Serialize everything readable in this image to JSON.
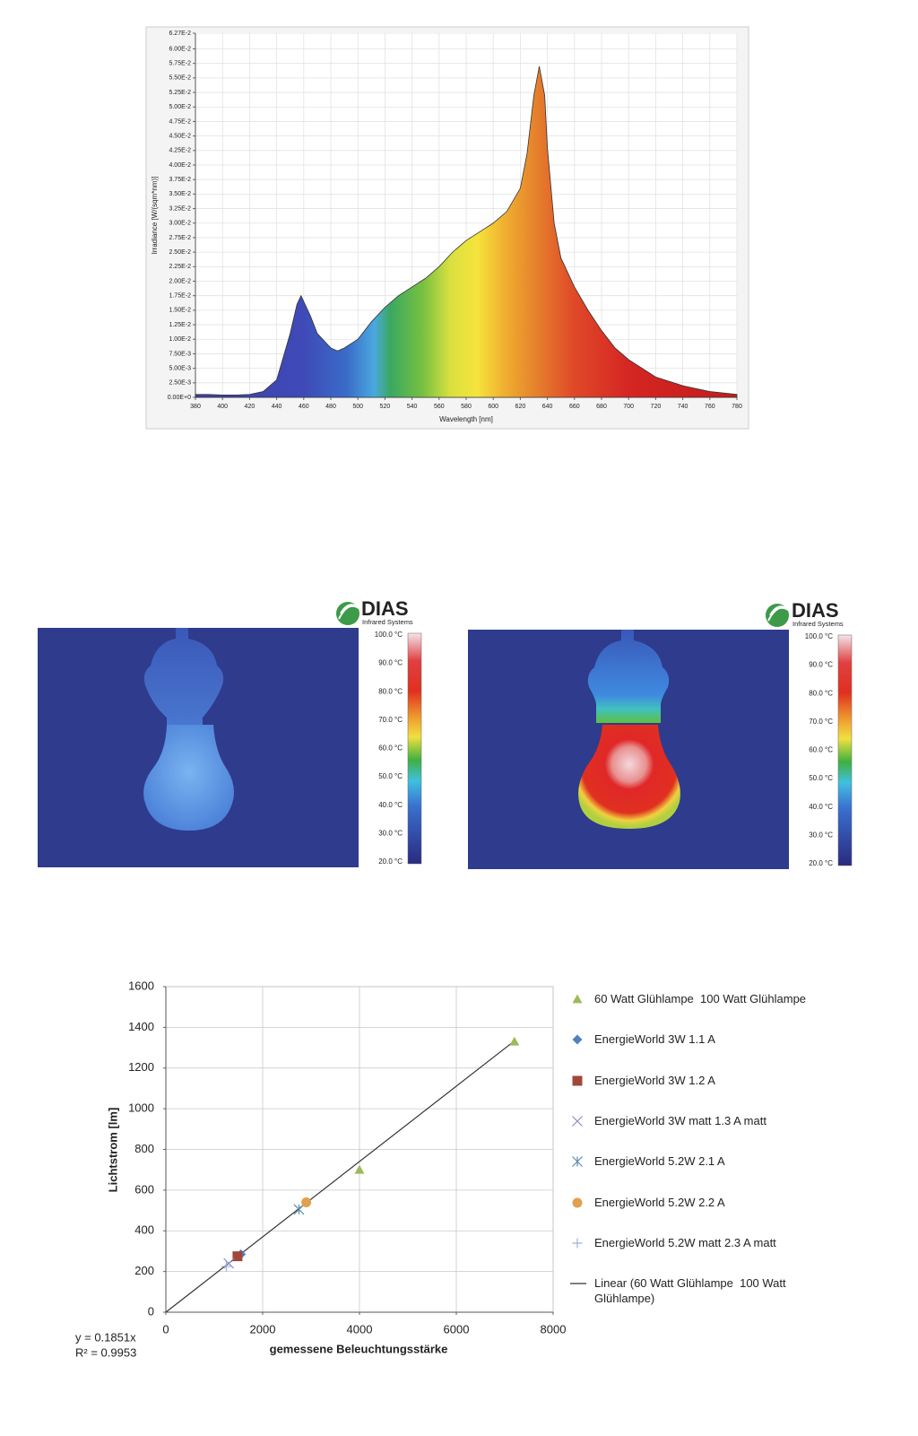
{
  "chart_data": [
    {
      "type": "area",
      "xlabel": "Wavelength [nm]",
      "ylabel": "Irradiance [W/(sqm*nm)]",
      "x": [
        380,
        390,
        400,
        410,
        420,
        430,
        440,
        450,
        455,
        458,
        465,
        470,
        480,
        485,
        490,
        500,
        510,
        520,
        530,
        540,
        550,
        560,
        570,
        580,
        590,
        600,
        610,
        620,
        625,
        630,
        634,
        638,
        640,
        645,
        650,
        660,
        670,
        680,
        690,
        700,
        720,
        740,
        760,
        780
      ],
      "values": [
        0.0005,
        0.0005,
        0.0004,
        0.0004,
        0.0005,
        0.001,
        0.003,
        0.011,
        0.016,
        0.0175,
        0.014,
        0.011,
        0.0085,
        0.008,
        0.0085,
        0.01,
        0.013,
        0.0155,
        0.0175,
        0.019,
        0.0205,
        0.0225,
        0.025,
        0.027,
        0.0285,
        0.03,
        0.032,
        0.036,
        0.042,
        0.052,
        0.057,
        0.052,
        0.043,
        0.03,
        0.024,
        0.019,
        0.015,
        0.0115,
        0.0085,
        0.0065,
        0.0035,
        0.002,
        0.001,
        0.0005
      ],
      "xlim": [
        380,
        780
      ],
      "ylim": [
        0,
        0.0627
      ],
      "xticks": [
        380,
        400,
        420,
        440,
        460,
        480,
        500,
        520,
        540,
        560,
        580,
        600,
        620,
        640,
        660,
        680,
        700,
        720,
        740,
        760,
        780
      ],
      "yticks": [
        {
          "value": 0,
          "label": "0.00E+0"
        },
        {
          "value": 0.0025,
          "label": "2.50E-3"
        },
        {
          "value": 0.005,
          "label": "5.00E-3"
        },
        {
          "value": 0.0075,
          "label": "7.50E-3"
        },
        {
          "value": 0.01,
          "label": "1.00E-2"
        },
        {
          "value": 0.0125,
          "label": "1.25E-2"
        },
        {
          "value": 0.015,
          "label": "1.50E-2"
        },
        {
          "value": 0.0175,
          "label": "1.75E-2"
        },
        {
          "value": 0.02,
          "label": "2.00E-2"
        },
        {
          "value": 0.0225,
          "label": "2.25E-2"
        },
        {
          "value": 0.025,
          "label": "2.50E-2"
        },
        {
          "value": 0.0275,
          "label": "2.75E-2"
        },
        {
          "value": 0.03,
          "label": "3.00E-2"
        },
        {
          "value": 0.0325,
          "label": "3.25E-2"
        },
        {
          "value": 0.035,
          "label": "3.50E-2"
        },
        {
          "value": 0.0375,
          "label": "3.75E-2"
        },
        {
          "value": 0.04,
          "label": "4.00E-2"
        },
        {
          "value": 0.0425,
          "label": "4.25E-2"
        },
        {
          "value": 0.045,
          "label": "4.50E-2"
        },
        {
          "value": 0.0475,
          "label": "4.75E-2"
        },
        {
          "value": 0.05,
          "label": "5.00E-2"
        },
        {
          "value": 0.0525,
          "label": "5.25E-2"
        },
        {
          "value": 0.055,
          "label": "5.50E-2"
        },
        {
          "value": 0.0575,
          "label": "5.75E-2"
        },
        {
          "value": 0.06,
          "label": "6.00E-2"
        },
        {
          "value": 0.0627,
          "label": "6.27E-2"
        }
      ],
      "grid": true
    },
    {
      "type": "scatter",
      "xlabel": "gemessene Beleuchtungsstärke",
      "ylabel": "Lichtstrom [lm]",
      "xlim": [
        0,
        8000
      ],
      "ylim": [
        0,
        1600
      ],
      "xticks": [
        0,
        2000,
        4000,
        6000,
        8000
      ],
      "yticks": [
        0,
        200,
        400,
        600,
        800,
        1000,
        1200,
        1400,
        1600
      ],
      "grid": true,
      "series": [
        {
          "name": "60 Watt Glühlampe  100 Watt Glühlampe",
          "color": "#9bbb59",
          "marker": "triangle",
          "x": [
            4000,
            7200
          ],
          "values": [
            700,
            1330
          ]
        },
        {
          "name": "EnergieWorld 3W 1.1 A",
          "color": "#4f81bd",
          "marker": "diamond",
          "x": [
            1550
          ],
          "values": [
            285
          ]
        },
        {
          "name": "EnergieWorld 3W 1.2 A",
          "color": "#a0473b",
          "marker": "square",
          "x": [
            1480
          ],
          "values": [
            275
          ]
        },
        {
          "name": "EnergieWorld 3W matt 1.3 A matt",
          "color": "#8a8fc0",
          "marker": "x",
          "x": [
            1300
          ],
          "values": [
            240
          ]
        },
        {
          "name": "EnergieWorld 5.2W 2.1 A",
          "color": "#5a8fa8",
          "marker": "star",
          "x": [
            2750
          ],
          "values": [
            505
          ]
        },
        {
          "name": "EnergieWorld 5.2W 2.2 A",
          "color": "#e0a050",
          "marker": "circle",
          "x": [
            2900
          ],
          "values": [
            540
          ]
        },
        {
          "name": "EnergieWorld 5.2W matt 2.3 A matt",
          "color": "#a0b0d8",
          "marker": "plus",
          "x": [
            1250
          ],
          "values": [
            225
          ]
        }
      ],
      "trendline": {
        "name": "Linear (60 Watt Glühlampe  100 Watt Glühlampe)",
        "color": "#333333",
        "x": [
          0,
          7200
        ],
        "values": [
          0,
          1333
        ]
      },
      "annotations": [
        "y = 0.1851x",
        "R² = 0.9953"
      ]
    }
  ],
  "thermal_images": [
    {
      "logo_title": "DIAS",
      "logo_subtitle": "Infrared Systems",
      "scale": [
        "100.0 °C",
        "90.0 °C",
        "80.0 °C",
        "70.0 °C",
        "60.0 °C",
        "50.0 °C",
        "40.0 °C",
        "30.0 °C",
        "20.0 °C"
      ]
    },
    {
      "logo_title": "DIAS",
      "logo_subtitle": "Infrared Systems",
      "scale": [
        "100.0 °C",
        "90.0 °C",
        "80.0 °C",
        "70.0 °C",
        "60.0 °C",
        "50.0 °C",
        "40.0 °C",
        "30.0 °C",
        "20.0 °C"
      ]
    }
  ]
}
